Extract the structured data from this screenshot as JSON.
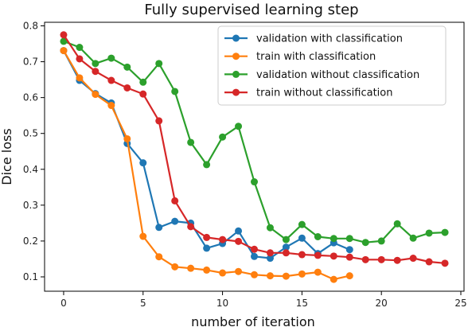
{
  "chart_data": {
    "type": "line",
    "title": "Fully supervised learning step",
    "xlabel": "number of iteration",
    "ylabel": "Dice loss",
    "xlim": [
      -1.2,
      25.2
    ],
    "ylim": [
      0.06,
      0.81
    ],
    "xticks": [
      0,
      5,
      10,
      15,
      20,
      25
    ],
    "yticks": [
      0.1,
      0.2,
      0.3,
      0.4,
      0.5,
      0.6,
      0.7,
      0.8
    ],
    "ytick_labels": [
      "0.1",
      "0.2",
      "0.3",
      "0.4",
      "0.5",
      "0.6",
      "0.7",
      "0.8"
    ],
    "grid": false,
    "legend_position": "top-right",
    "series": [
      {
        "name": "validation with classification",
        "color": "#1f77b4",
        "x": [
          0,
          1,
          2,
          3,
          4,
          5,
          6,
          7,
          8,
          9,
          10,
          11,
          12,
          13,
          14,
          15,
          16,
          17,
          18
        ],
        "y": [
          0.731,
          0.648,
          0.611,
          0.585,
          0.472,
          0.418,
          0.238,
          0.255,
          0.25,
          0.18,
          0.193,
          0.228,
          0.157,
          0.152,
          0.183,
          0.208,
          0.165,
          0.195,
          0.176
        ]
      },
      {
        "name": "train with classification",
        "color": "#ff7f0e",
        "x": [
          0,
          1,
          2,
          3,
          4,
          5,
          6,
          7,
          8,
          9,
          10,
          11,
          12,
          13,
          14,
          15,
          16,
          17,
          18
        ],
        "y": [
          0.731,
          0.655,
          0.609,
          0.578,
          0.485,
          0.213,
          0.156,
          0.128,
          0.124,
          0.119,
          0.111,
          0.115,
          0.106,
          0.103,
          0.102,
          0.108,
          0.113,
          0.093,
          0.103
        ]
      },
      {
        "name": "validation without classification",
        "color": "#2ca02c",
        "x": [
          0,
          1,
          2,
          3,
          4,
          5,
          6,
          7,
          8,
          9,
          10,
          11,
          12,
          13,
          14,
          15,
          16,
          17,
          18,
          19,
          20,
          21,
          22,
          23,
          24
        ],
        "y": [
          0.757,
          0.74,
          0.695,
          0.71,
          0.685,
          0.643,
          0.695,
          0.617,
          0.475,
          0.413,
          0.49,
          0.52,
          0.365,
          0.237,
          0.204,
          0.246,
          0.212,
          0.207,
          0.207,
          0.196,
          0.2,
          0.248,
          0.208,
          0.222,
          0.224
        ]
      },
      {
        "name": "train without classification",
        "color": "#d62728",
        "x": [
          0,
          1,
          2,
          3,
          4,
          5,
          6,
          7,
          8,
          9,
          10,
          11,
          12,
          13,
          14,
          15,
          16,
          17,
          18,
          19,
          20,
          21,
          22,
          23,
          24
        ],
        "y": [
          0.775,
          0.708,
          0.673,
          0.648,
          0.627,
          0.61,
          0.535,
          0.312,
          0.24,
          0.21,
          0.204,
          0.199,
          0.177,
          0.167,
          0.167,
          0.162,
          0.16,
          0.158,
          0.155,
          0.148,
          0.148,
          0.146,
          0.152,
          0.142,
          0.138
        ]
      }
    ]
  }
}
